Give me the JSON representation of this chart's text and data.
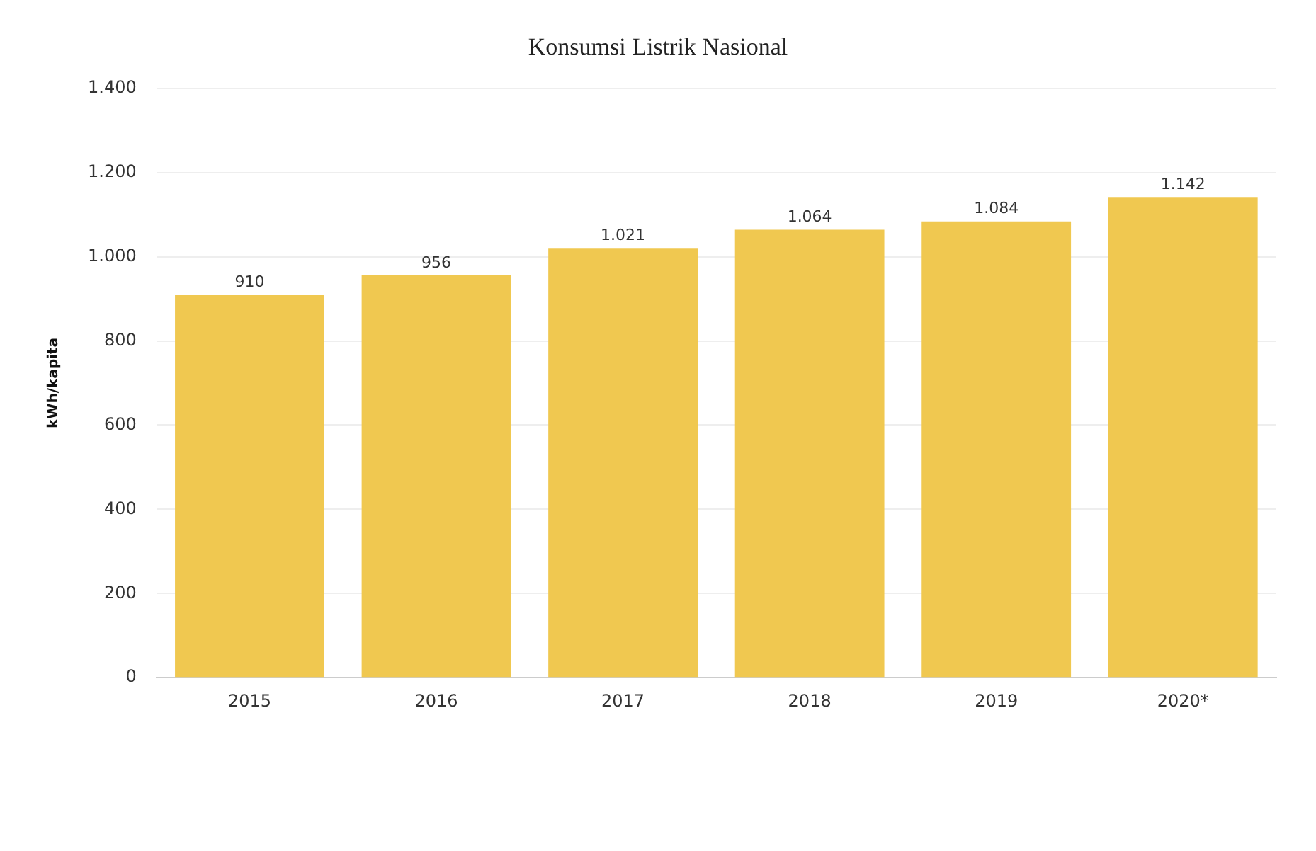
{
  "chart_data": {
    "type": "bar",
    "title": "Konsumsi Listrik Nasional",
    "ylabel": "kWh/kapita",
    "categories": [
      "2015",
      "2016",
      "2017",
      "2018",
      "2019",
      "2020*"
    ],
    "values": [
      910,
      956,
      1021,
      1064,
      1084,
      1142
    ],
    "value_labels": [
      "910",
      "956",
      "1.021",
      "1.064",
      "1.084",
      "1.142"
    ],
    "color": "#f0c850",
    "ylim": [
      0,
      1400
    ],
    "yticks": [
      {
        "value": 0,
        "label": "0"
      },
      {
        "value": 200,
        "label": "200"
      },
      {
        "value": 400,
        "label": "400"
      },
      {
        "value": 600,
        "label": "600"
      },
      {
        "value": 800,
        "label": "800"
      },
      {
        "value": 1000,
        "label": "1.000"
      },
      {
        "value": 1200,
        "label": "1.200"
      },
      {
        "value": 1400,
        "label": "1.400"
      }
    ],
    "grid": "y",
    "legend": false
  }
}
